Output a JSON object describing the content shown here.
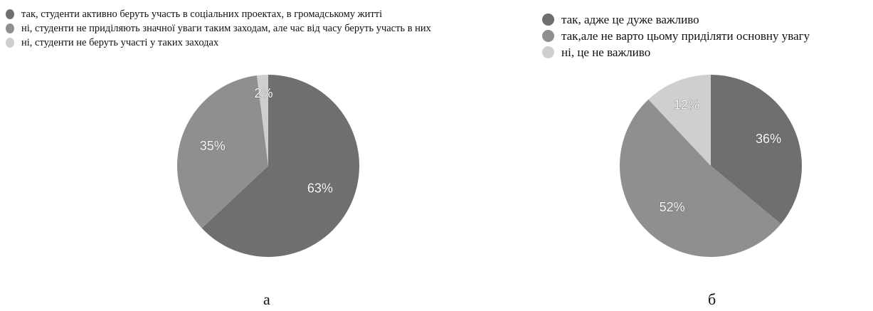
{
  "chart_data": [
    {
      "type": "pie",
      "caption": "а",
      "categories": [
        "так, студенти активно беруть участь в соціальних проектах, в громадському житті",
        "ні, студенти не приділяють значної уваги таким заходам, але час від часу беруть участь в них",
        "ні, студенти не беруть участі у таких заходах"
      ],
      "values": [
        63,
        35,
        2
      ],
      "value_labels": [
        "63%",
        "35%",
        "2%"
      ],
      "colors": [
        "#6f6f6f",
        "#8f8f8f",
        "#cfcfcf"
      ],
      "legend_placement": "top-left"
    },
    {
      "type": "pie",
      "caption": "б",
      "categories": [
        "так, адже це дуже важливо",
        "так,але не варто цьому приділяти основну увагу",
        "ні, це не важливо"
      ],
      "values": [
        36,
        52,
        12
      ],
      "value_labels": [
        "36%",
        "52%",
        "12%"
      ],
      "colors": [
        "#6f6f6f",
        "#8f8f8f",
        "#cfcfcf"
      ],
      "legend_placement": "top-left"
    }
  ]
}
